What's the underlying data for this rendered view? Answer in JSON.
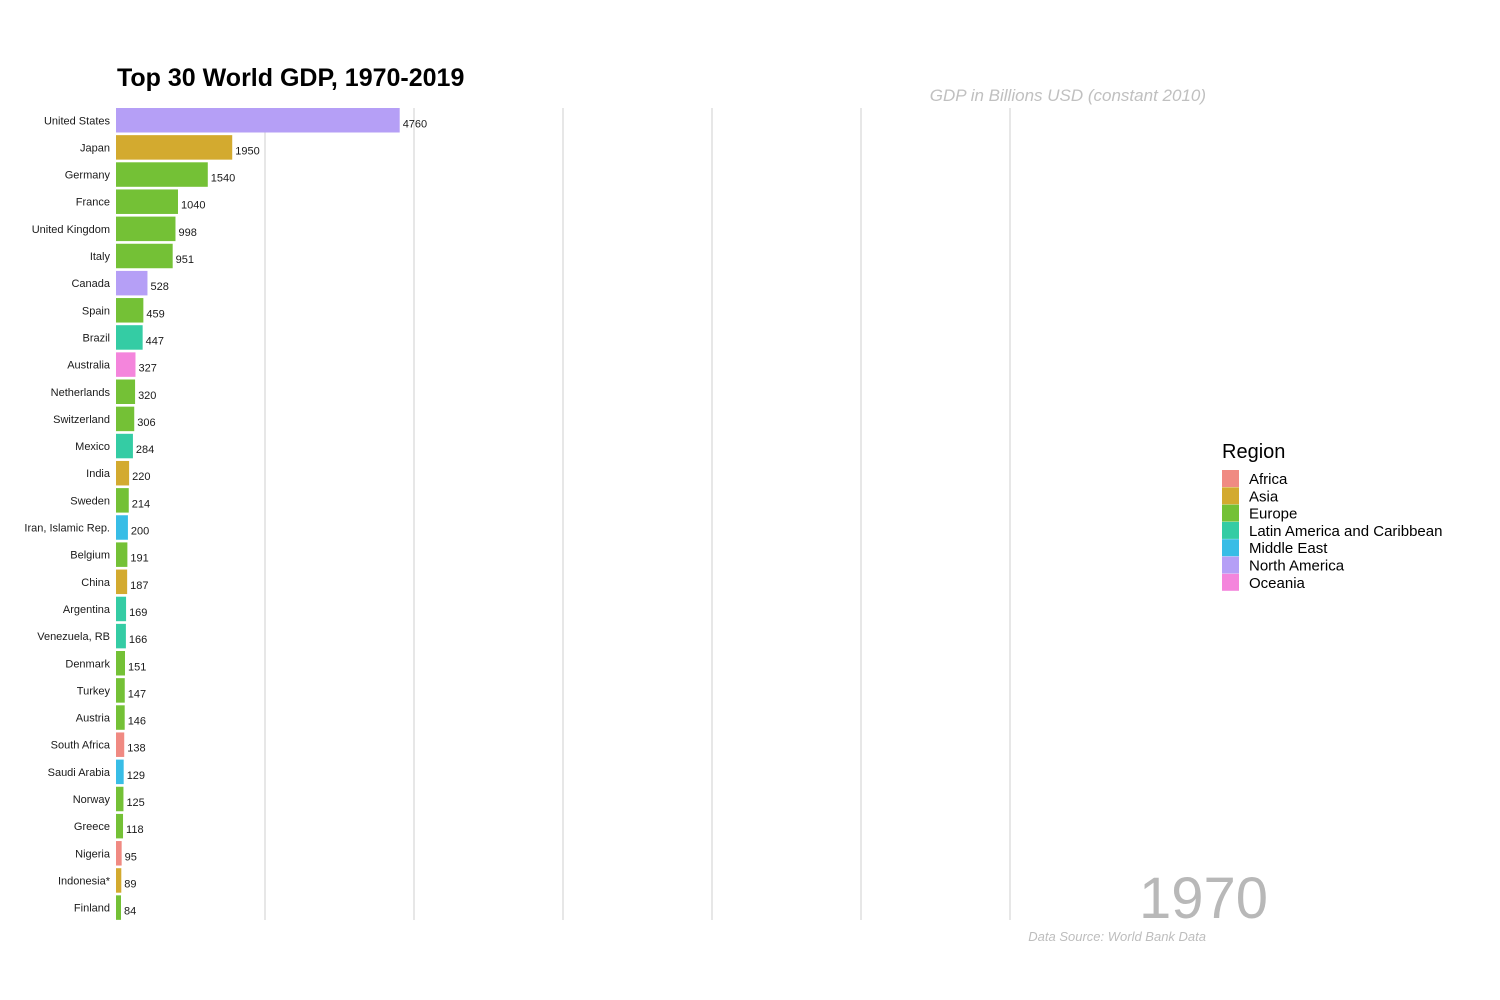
{
  "colors": {
    "Africa": "#f08a82",
    "Asia": "#d3aa2f",
    "Europe": "#74c136",
    "Latin America and Caribbean": "#34cca4",
    "Middle East": "#38bde6",
    "North America": "#b59ff6",
    "Oceania": "#f485dc"
  },
  "chart_data": {
    "type": "bar",
    "orientation": "horizontal",
    "title": "Top 30 World GDP, 1970-2019",
    "subtitle": "GDP in Billions USD (constant 2010)",
    "caption": "Data Source: World Bank Data",
    "year": "1970",
    "legend": {
      "title": "Region",
      "position": "right",
      "entries": [
        "Africa",
        "Asia",
        "Europe",
        "Latin America and Caribbean",
        "Middle East",
        "North America",
        "Oceania"
      ]
    },
    "xlim": [
      0,
      17500
    ],
    "gridlines": [
      2500,
      5000,
      7500,
      10000,
      12500,
      15000
    ],
    "grid": true,
    "categories": [
      "United States",
      "Japan",
      "Germany",
      "France",
      "United Kingdom",
      "Italy",
      "Canada",
      "Spain",
      "Brazil",
      "Australia",
      "Netherlands",
      "Switzerland",
      "Mexico",
      "India",
      "Sweden",
      "Iran, Islamic Rep.",
      "Belgium",
      "China",
      "Argentina",
      "Venezuela, RB",
      "Denmark",
      "Turkey",
      "Austria",
      "South Africa",
      "Saudi Arabia",
      "Norway",
      "Greece",
      "Nigeria",
      "Indonesia*",
      "Finland"
    ],
    "values": [
      4760,
      1950,
      1540,
      1040,
      998,
      951,
      528,
      459,
      447,
      327,
      320,
      306,
      284,
      220,
      214,
      200,
      191,
      187,
      169,
      166,
      151,
      147,
      146,
      138,
      129,
      125,
      118,
      95,
      89,
      84
    ],
    "regions": [
      "North America",
      "Asia",
      "Europe",
      "Europe",
      "Europe",
      "Europe",
      "North America",
      "Europe",
      "Latin America and Caribbean",
      "Oceania",
      "Europe",
      "Europe",
      "Latin America and Caribbean",
      "Asia",
      "Europe",
      "Middle East",
      "Europe",
      "Asia",
      "Latin America and Caribbean",
      "Latin America and Caribbean",
      "Europe",
      "Europe",
      "Europe",
      "Africa",
      "Middle East",
      "Europe",
      "Europe",
      "Africa",
      "Asia",
      "Europe"
    ]
  }
}
